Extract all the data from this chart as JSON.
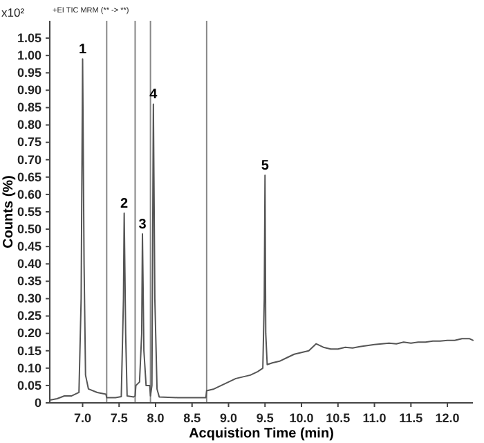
{
  "chart_data": {
    "type": "line",
    "xlabel": "Acquistion Time (min)",
    "ylabel": "Counts (%)",
    "annotations": [
      "x10²",
      "+EI TIC MRM (** -> **)",
      {
        "text": "1",
        "x": 7.0,
        "y": 0.99
      },
      {
        "text": "2",
        "x": 7.57,
        "y": 0.546
      },
      {
        "text": "3",
        "x": 7.82,
        "y": 0.486
      },
      {
        "text": "4",
        "x": 7.97,
        "y": 0.86
      },
      {
        "text": "5",
        "x": 9.5,
        "y": 0.655
      }
    ],
    "series": [
      {
        "color": "#555555",
        "x": [
          6.55,
          6.65,
          6.75,
          6.85,
          6.9,
          6.95,
          6.98,
          7.0,
          7.02,
          7.04,
          7.08,
          7.2,
          7.32,
          7.33,
          7.45,
          7.53,
          7.56,
          7.57,
          7.59,
          7.61,
          7.7,
          7.72,
          7.73,
          7.78,
          7.81,
          7.82,
          7.84,
          7.87,
          7.92,
          7.93,
          7.95,
          7.97,
          7.99,
          8.02,
          8.05,
          8.3,
          8.69,
          8.7,
          8.8,
          8.9,
          9.0,
          9.1,
          9.2,
          9.3,
          9.4,
          9.47,
          9.49,
          9.5,
          9.51,
          9.53,
          9.6,
          9.7,
          9.8,
          9.9,
          10.0,
          10.1,
          10.2,
          10.3,
          10.4,
          10.5,
          10.6,
          10.7,
          10.8,
          10.9,
          11.0,
          11.1,
          11.2,
          11.3,
          11.4,
          11.5,
          11.6,
          11.7,
          11.8,
          11.9,
          12.0,
          12.1,
          12.2,
          12.3,
          12.35
        ],
        "values": [
          0.008,
          0.012,
          0.02,
          0.02,
          0.025,
          0.03,
          0.3,
          0.99,
          0.4,
          0.08,
          0.04,
          0.03,
          0.025,
          0.015,
          0.015,
          0.018,
          0.3,
          0.546,
          0.2,
          0.02,
          0.017,
          0.02,
          0.05,
          0.06,
          0.2,
          0.486,
          0.15,
          0.05,
          0.05,
          0.02,
          0.05,
          0.86,
          0.3,
          0.04,
          0.017,
          0.015,
          0.015,
          0.035,
          0.04,
          0.05,
          0.06,
          0.07,
          0.075,
          0.08,
          0.09,
          0.1,
          0.3,
          0.655,
          0.2,
          0.11,
          0.115,
          0.12,
          0.13,
          0.14,
          0.145,
          0.15,
          0.17,
          0.16,
          0.155,
          0.155,
          0.16,
          0.158,
          0.162,
          0.165,
          0.168,
          0.17,
          0.172,
          0.17,
          0.175,
          0.172,
          0.175,
          0.175,
          0.178,
          0.178,
          0.18,
          0.18,
          0.185,
          0.185,
          0.18
        ]
      }
    ],
    "xlim": [
      6.55,
      12.35
    ],
    "xticks": [
      {
        "value": 7,
        "label": "7.0"
      },
      7.5,
      {
        "value": 8,
        "label": "8.0"
      },
      8.5,
      {
        "value": 9,
        "label": "9.0"
      },
      9.5,
      {
        "value": 10,
        "label": "10.0"
      },
      10.5,
      {
        "value": 11,
        "label": "11.0"
      },
      11.5,
      {
        "value": 12,
        "label": "12.0"
      }
    ],
    "ylim": [
      0,
      1.1
    ],
    "yticks": [
      0,
      0.05,
      {
        "value": 0.1,
        "label": "0.10"
      },
      0.15,
      {
        "value": 0.2,
        "label": "0.20"
      },
      0.25,
      {
        "value": 0.3,
        "label": "0.30"
      },
      0.35,
      {
        "value": 0.4,
        "label": "0.40"
      },
      0.45,
      {
        "value": 0.5,
        "label": "0.50"
      },
      0.55,
      {
        "value": 0.6,
        "label": "0.60"
      },
      0.65,
      {
        "value": 0.7,
        "label": "0.70"
      },
      0.75,
      {
        "value": 0.8,
        "label": "0.80"
      },
      0.85,
      {
        "value": 0.9,
        "label": "0.90"
      },
      0.95,
      {
        "value": 1,
        "label": "1.00"
      },
      1.05
    ],
    "ref_lines": [
      {
        "axis": "x",
        "value": 7.33,
        "color": "#888888"
      },
      {
        "axis": "x",
        "value": 7.72,
        "color": "#888888"
      },
      {
        "axis": "x",
        "value": 7.93,
        "color": "#888888"
      },
      {
        "axis": "x",
        "value": 8.7,
        "color": "#888888"
      }
    ],
    "grid": false
  }
}
